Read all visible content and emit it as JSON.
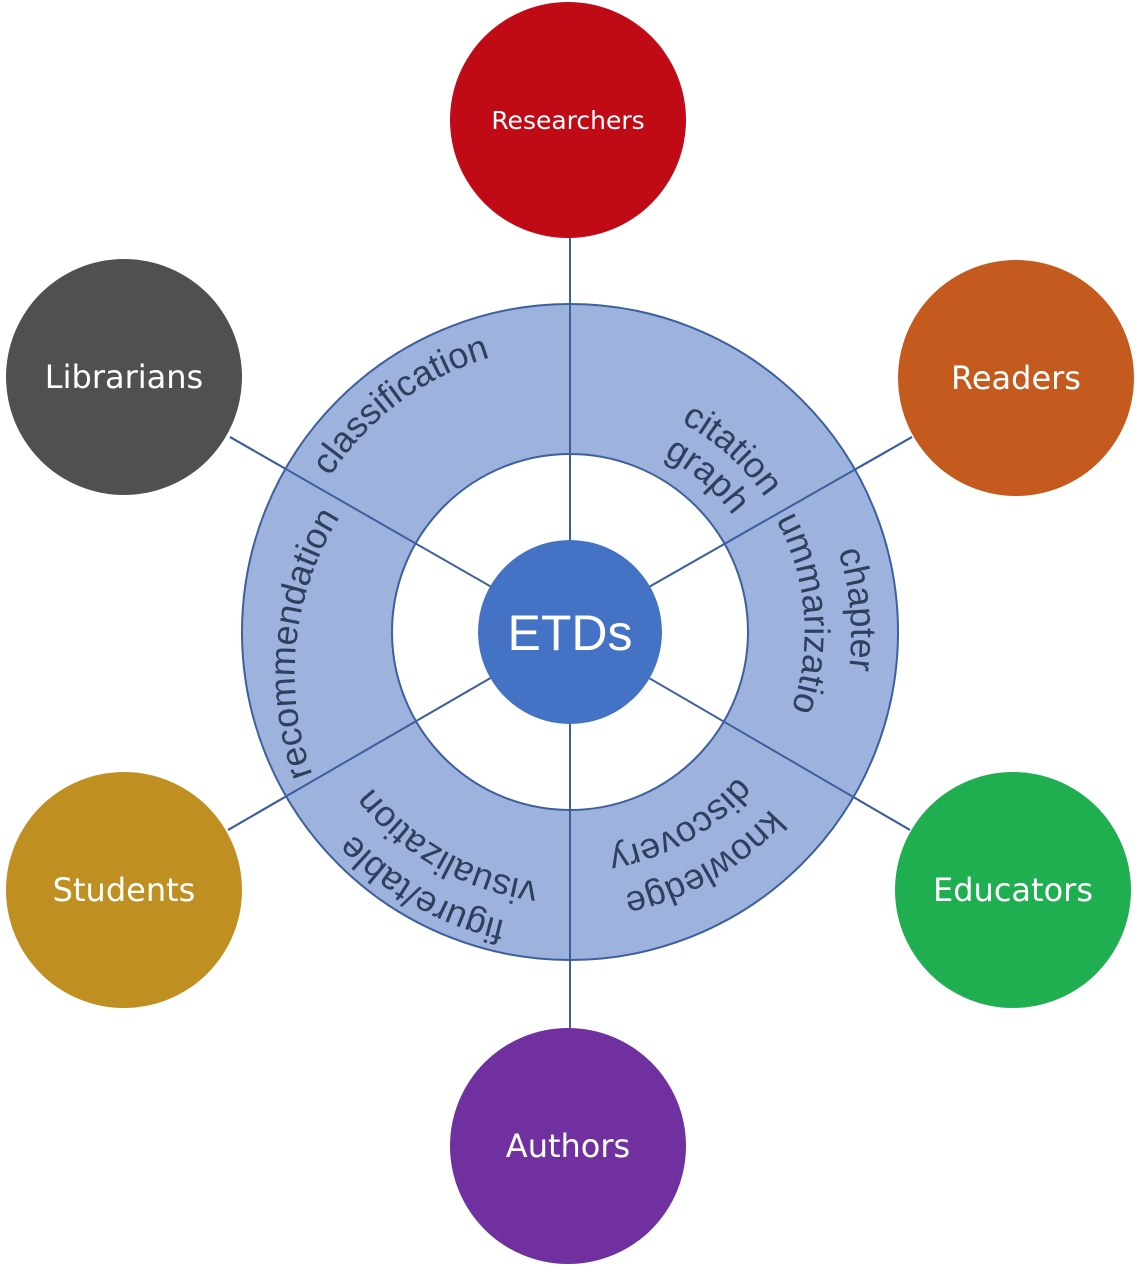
{
  "center": {
    "label": "ETDs",
    "color": "#4472c4"
  },
  "ring": {
    "fill": "#9db3de",
    "stroke": "#3c5f9d",
    "segments": [
      {
        "id": "classification",
        "lines": [
          "classification"
        ]
      },
      {
        "id": "citation-graph",
        "lines": [
          "citation",
          "graph"
        ]
      },
      {
        "id": "chapter-summarization",
        "lines": [
          "chapter",
          "summarization"
        ]
      },
      {
        "id": "knowledge-discovery",
        "lines": [
          "knowledge",
          "discovery"
        ]
      },
      {
        "id": "figure-table-visualization",
        "lines": [
          "figure/table",
          "visualization"
        ]
      },
      {
        "id": "recommendation",
        "lines": [
          "recommendation"
        ]
      }
    ]
  },
  "users": [
    {
      "id": "researchers",
      "label": "Researchers",
      "color": "#c00a16"
    },
    {
      "id": "readers",
      "label": "Readers",
      "color": "#c55a1e"
    },
    {
      "id": "educators",
      "label": "Educators",
      "color": "#1faf50"
    },
    {
      "id": "authors",
      "label": "Authors",
      "color": "#7030a0"
    },
    {
      "id": "students",
      "label": "Students",
      "color": "#bf8f22"
    },
    {
      "id": "librarians",
      "label": "Librarians",
      "color": "#505050"
    }
  ],
  "connector_color": "#3c5f9d"
}
